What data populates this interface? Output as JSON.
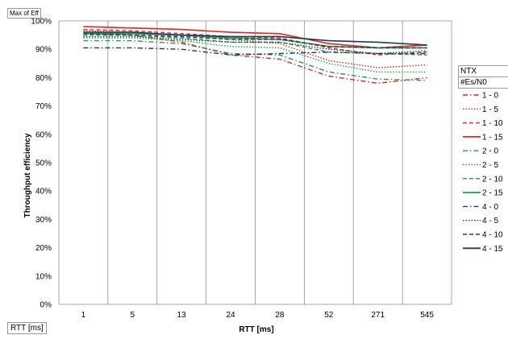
{
  "field_tag": "Max of Eff",
  "axis_tag": "RTT [ms]",
  "legend_header": {
    "title": "NTX",
    "subtitle": "#Es/N0"
  },
  "chart_data": {
    "type": "line",
    "title": "",
    "xlabel": "RTT [ms]",
    "ylabel": "Throughput efficiency",
    "categories": [
      "1",
      "5",
      "13",
      "24",
      "28",
      "52",
      "271",
      "545"
    ],
    "y_ticks": [
      "0%",
      "10%",
      "20%",
      "30%",
      "40%",
      "50%",
      "60%",
      "70%",
      "80%",
      "90%",
      "100%"
    ],
    "ylim": [
      0,
      100
    ],
    "grid": "vertical",
    "legend_position": "right",
    "series": [
      {
        "name": "1 - 0",
        "color": "#e8231e",
        "dash": "dashdot",
        "values": [
          95.5,
          95.0,
          92.5,
          88.0,
          86.5,
          80.5,
          78.0,
          80.0
        ]
      },
      {
        "name": "1 - 5",
        "color": "#e8231e",
        "dash": "dot",
        "values": [
          96.5,
          96.0,
          95.0,
          93.5,
          92.0,
          86.0,
          83.5,
          84.5
        ]
      },
      {
        "name": "1 - 10",
        "color": "#e8231e",
        "dash": "dash",
        "values": [
          97.0,
          96.5,
          95.5,
          94.5,
          94.0,
          90.5,
          88.0,
          89.0
        ]
      },
      {
        "name": "1 - 15",
        "color": "#e8231e",
        "dash": "solid",
        "values": [
          98.0,
          97.5,
          97.0,
          96.0,
          95.5,
          92.0,
          90.5,
          91.5
        ]
      },
      {
        "name": "2 - 0",
        "color": "#1f9e48",
        "dash": "dashdot",
        "values": [
          93.0,
          93.0,
          92.0,
          88.5,
          88.0,
          82.0,
          79.5,
          79.0
        ]
      },
      {
        "name": "2 - 5",
        "color": "#1f9e48",
        "dash": "dot",
        "values": [
          94.0,
          94.0,
          93.0,
          91.0,
          90.5,
          85.0,
          82.0,
          82.0
        ]
      },
      {
        "name": "2 - 10",
        "color": "#1f9e48",
        "dash": "dash",
        "values": [
          95.0,
          95.0,
          94.0,
          92.5,
          92.5,
          89.0,
          88.5,
          88.0
        ]
      },
      {
        "name": "2 - 15",
        "color": "#1f9e48",
        "dash": "solid",
        "values": [
          95.5,
          95.5,
          95.0,
          94.0,
          93.5,
          91.0,
          90.5,
          90.5
        ]
      },
      {
        "name": "4 - 0",
        "color": "#1c3a5a",
        "dash": "dashdot",
        "values": [
          90.5,
          90.5,
          90.0,
          88.0,
          88.5,
          89.0,
          88.5,
          88.5
        ]
      },
      {
        "name": "4 - 5",
        "color": "#1c3a5a",
        "dash": "dot",
        "values": [
          94.5,
          94.5,
          93.5,
          92.5,
          92.5,
          90.0,
          88.5,
          89.5
        ]
      },
      {
        "name": "4 - 10",
        "color": "#1c3a5a",
        "dash": "dash",
        "values": [
          95.5,
          95.0,
          94.5,
          93.5,
          93.5,
          91.0,
          90.5,
          90.5
        ]
      },
      {
        "name": "4 - 15",
        "color": "#1c3a5a",
        "dash": "solid",
        "values": [
          96.0,
          96.0,
          95.0,
          94.5,
          94.5,
          93.0,
          92.5,
          91.5
        ]
      }
    ]
  }
}
